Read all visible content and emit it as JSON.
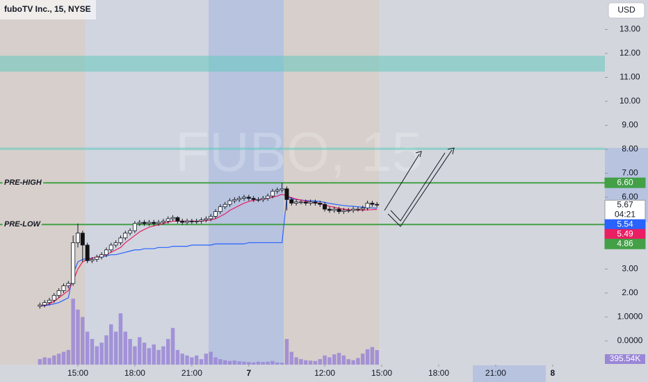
{
  "header": {
    "title": "fuboTV Inc., 15, NYSE",
    "currency": "USD",
    "watermark": "FUBO, 15"
  },
  "chart_data": {
    "type": "candlestick",
    "ylim": [
      -0.99,
      14.23
    ],
    "xlim": [
      -0.4,
      127
    ],
    "yticks": [
      {
        "value": 13,
        "label": "13.00"
      },
      {
        "value": 12,
        "label": "12.00"
      },
      {
        "value": 11,
        "label": "11.00"
      },
      {
        "value": 10,
        "label": "10.00"
      },
      {
        "value": 9,
        "label": "9.00"
      },
      {
        "value": 8,
        "label": "8.00"
      },
      {
        "value": 7,
        "label": "7.00"
      },
      {
        "value": 6,
        "label": "6.00"
      },
      {
        "value": 3,
        "label": "3.00"
      },
      {
        "value": 2,
        "label": "2.00"
      },
      {
        "value": 1,
        "label": "1.0000"
      },
      {
        "value": 0,
        "label": "0.0000"
      }
    ],
    "xticks": [
      {
        "value": 16,
        "label": "15:00"
      },
      {
        "value": 28,
        "label": "18:00"
      },
      {
        "value": 40,
        "label": "21:00"
      },
      {
        "value": 52,
        "label": "7"
      },
      {
        "value": 68,
        "label": "12:00"
      },
      {
        "value": 80,
        "label": "15:00"
      },
      {
        "value": 92,
        "label": "18:00"
      },
      {
        "value": 104,
        "label": "21:00"
      },
      {
        "value": 116,
        "label": "8"
      }
    ],
    "up_color": "#ffffff",
    "down_color": "#111111",
    "x": [
      8,
      9,
      10,
      11,
      12,
      13,
      14,
      15,
      16,
      17,
      18,
      19,
      20,
      21,
      22,
      23,
      24,
      25,
      26,
      27,
      28,
      29,
      30,
      31,
      32,
      33,
      34,
      35,
      36,
      37,
      38,
      39,
      40,
      41,
      42,
      43,
      44,
      45,
      46,
      47,
      48,
      49,
      50,
      51,
      52,
      53,
      54,
      55,
      56,
      57,
      58,
      59,
      60,
      61,
      62,
      63,
      64,
      65,
      66,
      67,
      68,
      69,
      70,
      71,
      72,
      73,
      74,
      75,
      76,
      77,
      78,
      79
    ],
    "open": [
      1.45,
      1.5,
      1.6,
      1.7,
      1.9,
      2.1,
      2.3,
      2.4,
      4.1,
      4.5,
      4.0,
      3.35,
      3.4,
      3.5,
      3.6,
      3.8,
      4.0,
      4.1,
      4.3,
      4.5,
      4.6,
      4.9,
      4.95,
      4.9,
      4.95,
      4.9,
      4.95,
      5.0,
      5.1,
      5.15,
      5.0,
      4.95,
      5.0,
      4.98,
      5.0,
      5.05,
      5.1,
      5.2,
      5.4,
      5.6,
      5.7,
      5.85,
      5.9,
      5.95,
      6.0,
      5.95,
      5.9,
      5.9,
      5.95,
      6.05,
      6.25,
      6.3,
      6.35,
      5.9,
      5.75,
      5.8,
      5.8,
      5.75,
      5.8,
      5.75,
      5.7,
      5.5,
      5.45,
      5.5,
      5.4,
      5.45,
      5.45,
      5.5,
      5.5,
      5.55,
      5.75,
      5.7
    ],
    "high": [
      1.6,
      1.7,
      1.8,
      2.0,
      2.2,
      2.4,
      2.5,
      4.4,
      4.9,
      4.6,
      4.1,
      3.5,
      3.6,
      3.7,
      3.9,
      4.1,
      4.2,
      4.4,
      4.6,
      4.7,
      5.0,
      5.05,
      5.05,
      5.05,
      5.05,
      5.05,
      5.1,
      5.2,
      5.25,
      5.2,
      5.1,
      5.1,
      5.1,
      5.1,
      5.15,
      5.2,
      5.3,
      5.5,
      5.7,
      5.8,
      5.95,
      6.0,
      6.05,
      6.1,
      6.1,
      6.05,
      6.0,
      6.05,
      6.15,
      6.35,
      6.4,
      6.6,
      6.45,
      6.0,
      5.9,
      5.9,
      5.9,
      5.9,
      5.9,
      5.85,
      5.8,
      5.6,
      5.6,
      5.6,
      5.55,
      5.55,
      5.6,
      5.6,
      5.65,
      5.85,
      5.85,
      5.8
    ],
    "low": [
      1.35,
      1.4,
      1.5,
      1.6,
      1.8,
      2.0,
      2.2,
      2.3,
      3.9,
      3.3,
      3.25,
      3.25,
      3.3,
      3.4,
      3.5,
      3.7,
      3.9,
      4.0,
      4.2,
      4.4,
      4.5,
      4.8,
      4.8,
      4.8,
      4.8,
      4.8,
      4.85,
      4.9,
      5.0,
      4.9,
      4.85,
      4.85,
      4.88,
      4.88,
      4.9,
      4.95,
      5.0,
      5.1,
      5.3,
      5.5,
      5.6,
      5.75,
      5.8,
      5.85,
      5.85,
      5.8,
      5.8,
      5.8,
      5.85,
      5.95,
      6.15,
      6.2,
      5.45,
      5.65,
      5.65,
      5.7,
      5.65,
      5.65,
      5.65,
      5.6,
      5.4,
      5.35,
      5.35,
      5.3,
      5.3,
      5.35,
      5.35,
      5.4,
      5.4,
      5.45,
      5.6,
      5.57
    ],
    "close": [
      1.5,
      1.6,
      1.7,
      1.9,
      2.1,
      2.3,
      2.4,
      4.1,
      4.5,
      4.0,
      3.35,
      3.4,
      3.5,
      3.6,
      3.8,
      4.0,
      4.1,
      4.3,
      4.5,
      4.6,
      4.9,
      4.95,
      4.9,
      4.95,
      4.9,
      4.95,
      5.0,
      5.1,
      5.15,
      5.0,
      4.95,
      5.0,
      4.98,
      5.0,
      5.05,
      5.1,
      5.2,
      5.4,
      5.6,
      5.7,
      5.85,
      5.9,
      5.95,
      6.0,
      5.95,
      5.9,
      5.9,
      5.95,
      6.05,
      6.25,
      6.3,
      6.35,
      5.9,
      5.75,
      5.8,
      5.8,
      5.75,
      5.8,
      5.75,
      5.7,
      5.5,
      5.45,
      5.5,
      5.4,
      5.45,
      5.45,
      5.5,
      5.5,
      5.55,
      5.75,
      5.7,
      5.67
    ],
    "lines": [
      {
        "color": "#2962ff",
        "values": [
          1.45,
          1.47,
          1.5,
          1.55,
          1.6,
          1.7,
          1.8,
          2.8,
          3.3,
          3.4,
          3.45,
          3.45,
          3.5,
          3.5,
          3.55,
          3.6,
          3.6,
          3.65,
          3.7,
          3.75,
          3.8,
          3.8,
          3.85,
          3.85,
          3.85,
          3.9,
          3.9,
          3.9,
          3.95,
          3.95,
          3.95,
          3.95,
          4.0,
          4.0,
          4.0,
          4.0,
          4.0,
          4.05,
          4.05,
          4.05,
          4.05,
          4.05,
          4.05,
          4.05,
          4.1,
          4.1,
          4.1,
          4.1,
          4.1,
          4.1,
          4.1,
          4.1,
          6.0,
          5.95,
          5.9,
          5.88,
          5.86,
          5.85,
          5.84,
          5.82,
          5.78,
          5.74,
          5.71,
          5.68,
          5.65,
          5.63,
          5.62,
          5.6,
          5.58,
          5.57,
          5.55,
          5.54
        ]
      },
      {
        "color": "#e91e63",
        "values": [
          1.45,
          1.5,
          1.55,
          1.65,
          1.8,
          1.95,
          2.1,
          2.5,
          3.0,
          3.3,
          3.4,
          3.45,
          3.5,
          3.55,
          3.6,
          3.7,
          3.8,
          3.9,
          4.1,
          4.25,
          4.4,
          4.55,
          4.65,
          4.75,
          4.8,
          4.85,
          4.9,
          4.95,
          5.0,
          5.0,
          5.0,
          5.0,
          5.0,
          5.0,
          5.0,
          5.02,
          5.05,
          5.1,
          5.2,
          5.3,
          5.45,
          5.55,
          5.65,
          5.75,
          5.82,
          5.87,
          5.9,
          5.92,
          5.95,
          6.0,
          6.05,
          6.12,
          6.05,
          5.98,
          5.92,
          5.88,
          5.84,
          5.8,
          5.78,
          5.74,
          5.68,
          5.62,
          5.58,
          5.53,
          5.5,
          5.48,
          5.47,
          5.46,
          5.46,
          5.47,
          5.48,
          5.49
        ]
      }
    ],
    "volume": {
      "color": "#9a86d6",
      "values": [
        150000,
        200000,
        180000,
        250000,
        300000,
        350000,
        400000,
        1800000,
        1500000,
        1300000,
        900000,
        700000,
        500000,
        600000,
        800000,
        1100000,
        900000,
        1400000,
        900000,
        700000,
        500000,
        750000,
        600000,
        450000,
        550000,
        400000,
        500000,
        700000,
        1000000,
        400000,
        300000,
        250000,
        200000,
        250000,
        150000,
        300000,
        350000,
        200000,
        150000,
        120000,
        100000,
        110000,
        90000,
        80000,
        70000,
        60000,
        80000,
        70000,
        80000,
        100000,
        60000,
        50000,
        700000,
        350000,
        200000,
        150000,
        120000,
        110000,
        100000,
        150000,
        250000,
        200000,
        280000,
        320000,
        250000,
        150000,
        120000,
        180000,
        300000,
        420000,
        480000,
        395540
      ],
      "last": {
        "value": 395540,
        "label": "395.54K"
      }
    },
    "levels": [
      {
        "label": "PRE-HIGH",
        "value": 6.6,
        "color": "#43a047"
      },
      {
        "label": "PRE-LOW",
        "value": 4.86,
        "color": "#43a047"
      }
    ],
    "zones": [
      {
        "from": 11.24,
        "to": 11.9,
        "color": "rgba(100,200,190,0.55)"
      },
      {
        "from": 7.97,
        "to": 8.07,
        "color": "rgba(100,200,190,0.55)"
      }
    ],
    "badges": [
      {
        "value": 6.6,
        "label": "6.60",
        "color": "#43a047",
        "text_color": "#ffffff"
      },
      {
        "value": 5.67,
        "label": "5.67",
        "countdown": "04:21",
        "color": "#ffffff",
        "text_color": "#131722"
      },
      {
        "value": 5.54,
        "label": "5.54",
        "color": "#2962ff",
        "text_color": "#ffffff"
      },
      {
        "value": 5.49,
        "label": "5.49",
        "color": "#e91e63",
        "text_color": "#ffffff"
      },
      {
        "value": 4.86,
        "label": "4.86",
        "color": "#43a047",
        "text_color": "#ffffff"
      }
    ]
  }
}
